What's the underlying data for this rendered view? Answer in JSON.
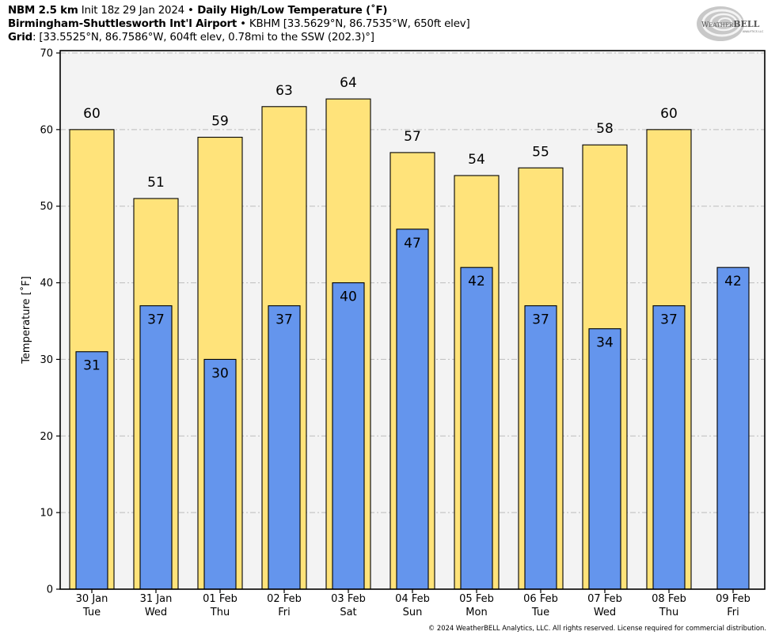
{
  "header": {
    "line1": {
      "model": "NBM 2.5 km",
      "init": " Init 18z 29 Jan 2024 ",
      "bullet": "•",
      "product": " Daily High/Low Temperature (˚F)"
    },
    "line2": {
      "station": "Birmingham-Shuttlesworth Int'l Airport",
      "bullet": " • ",
      "details": "KBHM [33.5629°N, 86.7535°W, 650ft elev]"
    },
    "line3": {
      "label": "Grid",
      "details": ": [33.5525°N, 86.7586°W, 604ft elev, 0.78mi to the SSW (202.3)°]"
    }
  },
  "logo": {
    "text_main": "WEATHERBELL",
    "text_sub": "ANALYTICS LLC",
    "icon": "weatherbell-swirl-logo"
  },
  "footer": {
    "copyright": "© 2024 WeatherBELL Analytics, LLC. All rights reserved. License required for commercial distribution."
  },
  "colors": {
    "high": "#FFE37A",
    "low": "#6495ED",
    "plot_bg": "#F3F3F3",
    "grid": "#BDBDBD"
  },
  "chart_data": {
    "type": "bar",
    "title": "Daily High/Low Temperature (˚F)",
    "xlabel": "",
    "ylabel": "Temperature [˚F]",
    "ylim": [
      0,
      70
    ],
    "yticks": [
      0,
      10,
      20,
      30,
      40,
      50,
      60,
      70
    ],
    "grid": true,
    "legend": "none",
    "categories": [
      {
        "date": "30 Jan",
        "day": "Tue"
      },
      {
        "date": "31 Jan",
        "day": "Wed"
      },
      {
        "date": "01 Feb",
        "day": "Thu"
      },
      {
        "date": "02 Feb",
        "day": "Fri"
      },
      {
        "date": "03 Feb",
        "day": "Sat"
      },
      {
        "date": "04 Feb",
        "day": "Sun"
      },
      {
        "date": "05 Feb",
        "day": "Mon"
      },
      {
        "date": "06 Feb",
        "day": "Tue"
      },
      {
        "date": "07 Feb",
        "day": "Wed"
      },
      {
        "date": "08 Feb",
        "day": "Thu"
      },
      {
        "date": "09 Feb",
        "day": "Fri"
      }
    ],
    "series": [
      {
        "name": "High",
        "values": [
          60,
          51,
          59,
          63,
          64,
          57,
          54,
          55,
          58,
          60,
          null
        ]
      },
      {
        "name": "Low",
        "values": [
          31,
          37,
          30,
          37,
          40,
          47,
          42,
          37,
          34,
          37,
          42
        ]
      }
    ]
  }
}
